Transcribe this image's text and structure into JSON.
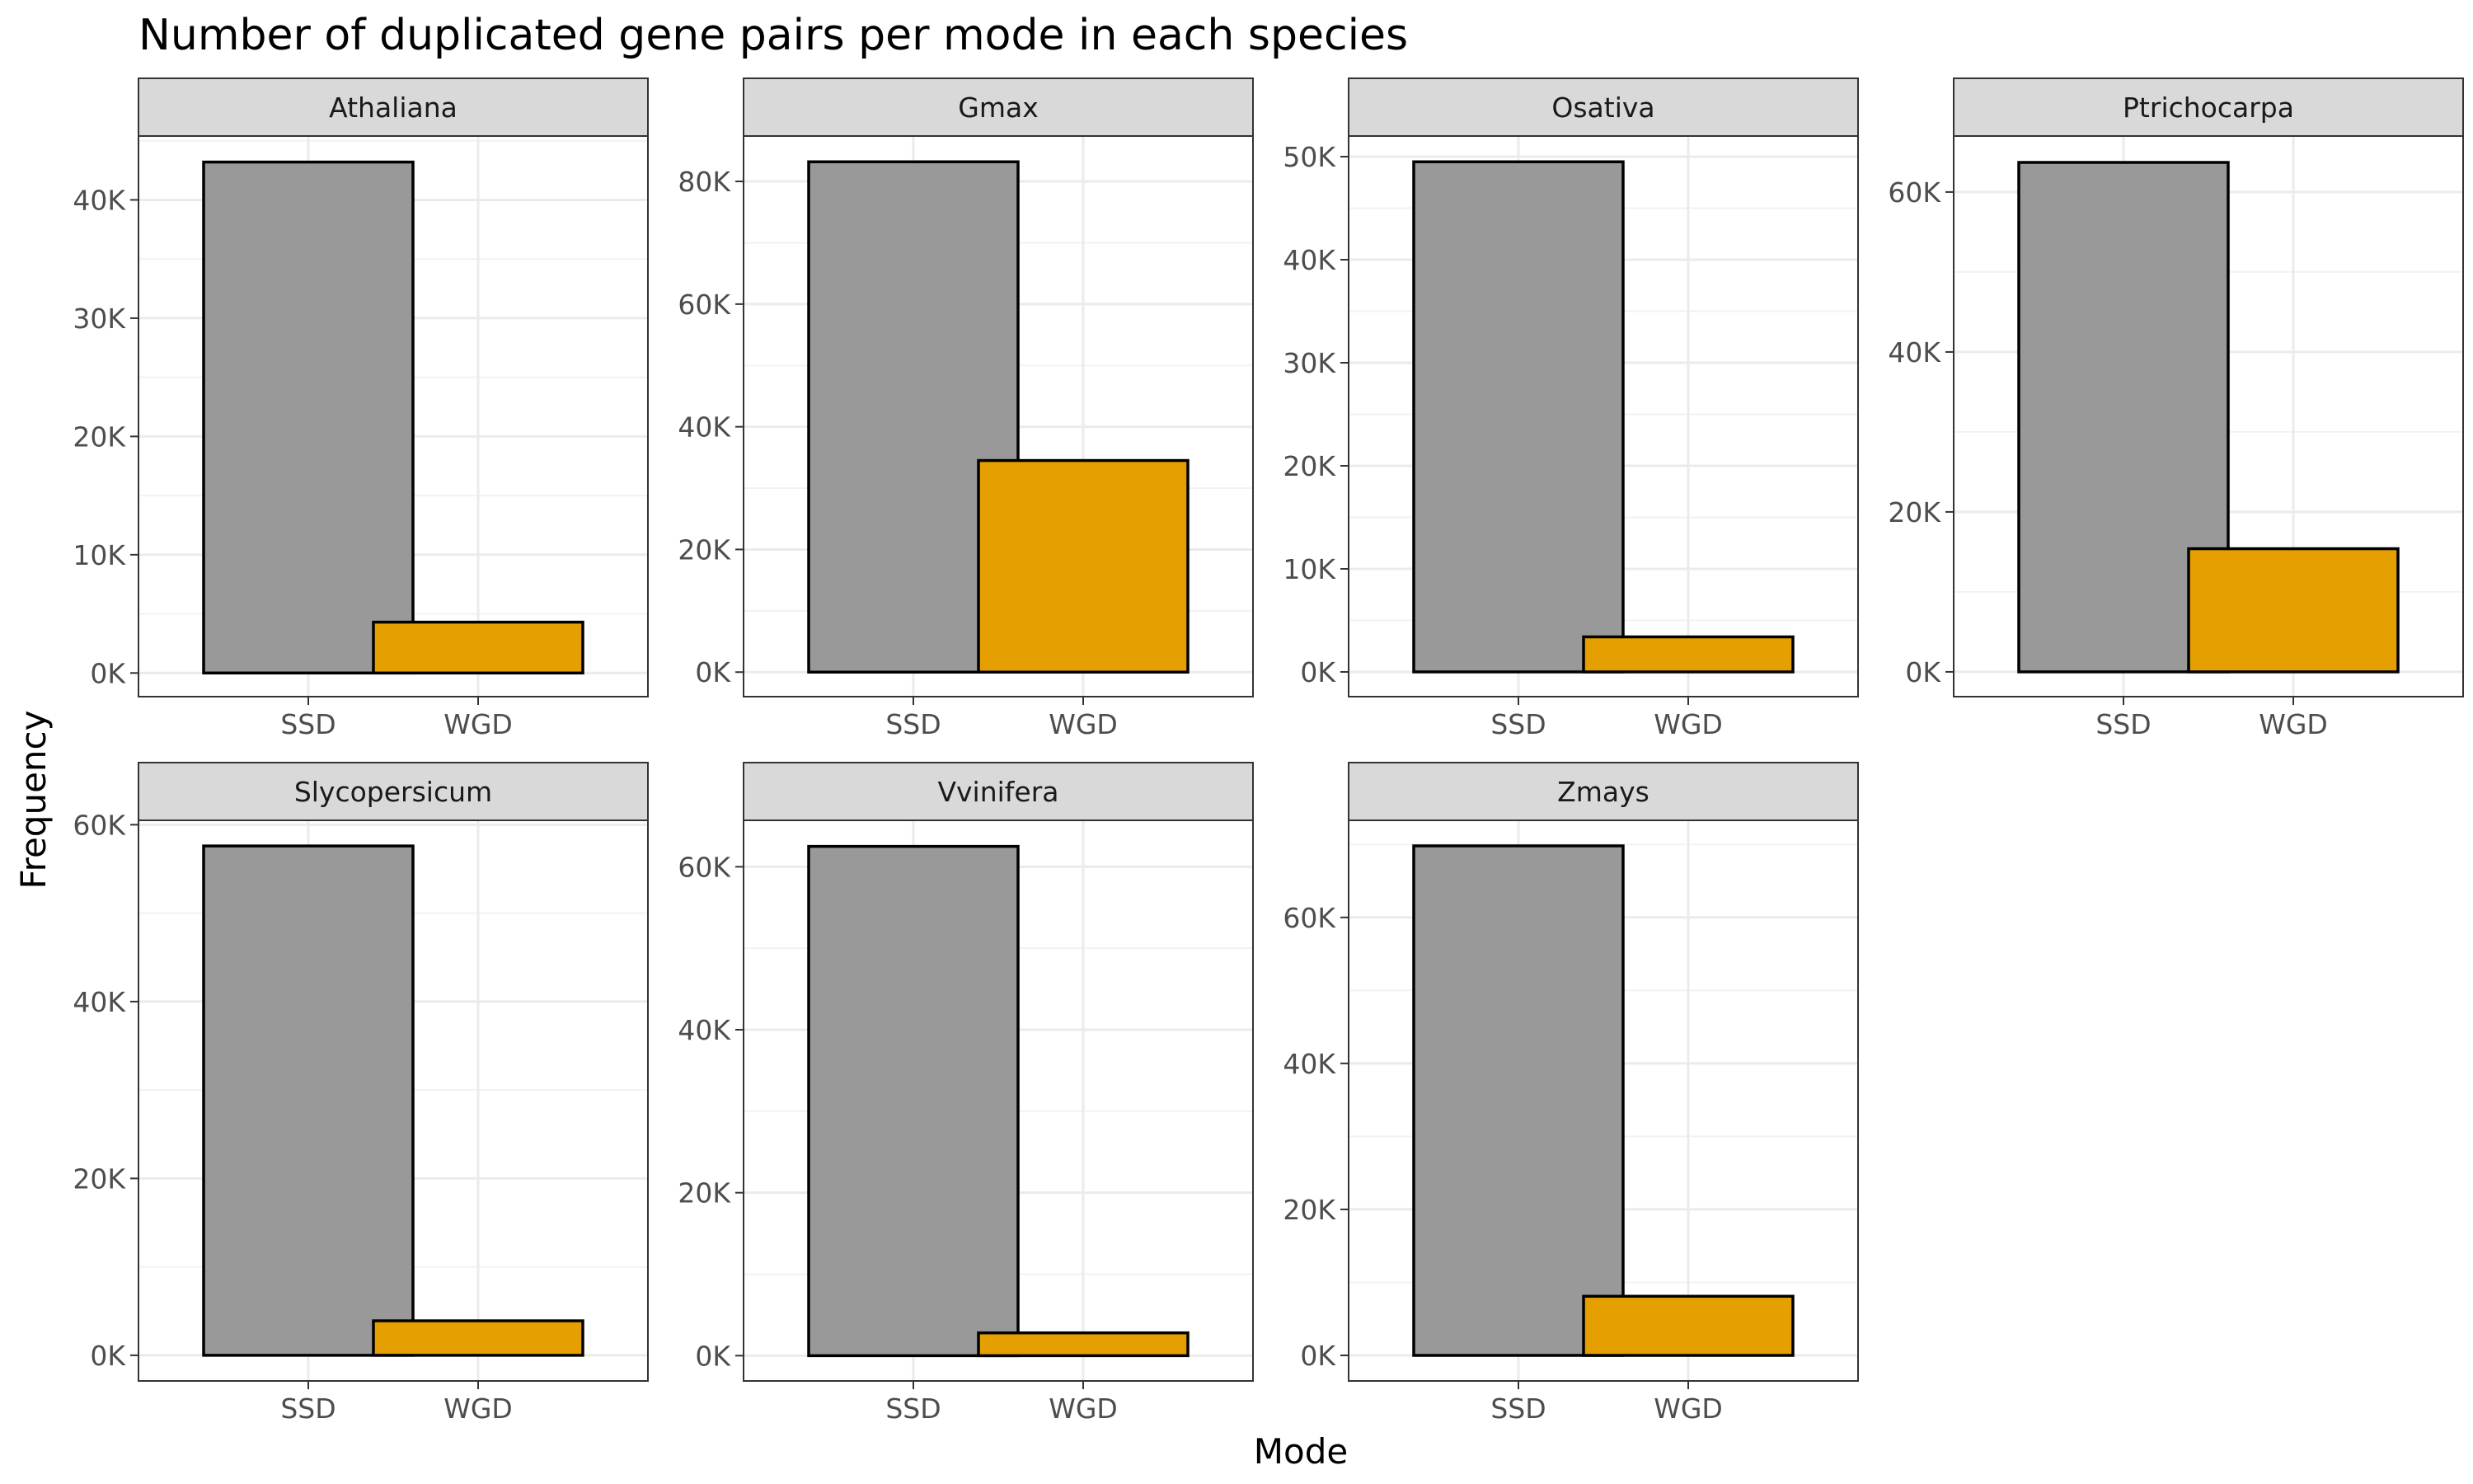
{
  "chart_data": {
    "type": "bar",
    "title": "Number of duplicated gene pairs per mode in each species",
    "xlabel": "Mode",
    "ylabel": "Frequency",
    "categories": [
      "SSD",
      "WGD"
    ],
    "colors": {
      "SSD": "#999999",
      "WGD": "#E69F00"
    },
    "grid": true,
    "facets": [
      {
        "name": "Athaliana",
        "values": [
          43200,
          4300
        ],
        "ylim": [
          -2000,
          45400
        ],
        "ticks": [
          0,
          10000,
          20000,
          30000,
          40000
        ],
        "tick_labels": [
          "0K",
          "10K",
          "20K",
          "30K",
          "40K"
        ]
      },
      {
        "name": "Gmax",
        "values": [
          83200,
          34500
        ],
        "ylim": [
          -4000,
          87400
        ],
        "ticks": [
          0,
          20000,
          40000,
          60000,
          80000
        ],
        "tick_labels": [
          "0K",
          "20K",
          "40K",
          "60K",
          "80K"
        ]
      },
      {
        "name": "Osativa",
        "values": [
          49500,
          3400
        ],
        "ylim": [
          -2400,
          52000
        ],
        "ticks": [
          0,
          10000,
          20000,
          30000,
          40000,
          50000
        ],
        "tick_labels": [
          "0K",
          "10K",
          "20K",
          "30K",
          "40K",
          "50K"
        ]
      },
      {
        "name": "Ptrichocarpa",
        "values": [
          63700,
          15400
        ],
        "ylim": [
          -3100,
          67000
        ],
        "ticks": [
          0,
          20000,
          40000,
          60000
        ],
        "tick_labels": [
          "0K",
          "20K",
          "40K",
          "60K"
        ]
      },
      {
        "name": "Slycopersicum",
        "values": [
          57600,
          3900
        ],
        "ylim": [
          -2900,
          60500
        ],
        "ticks": [
          0,
          20000,
          40000,
          60000
        ],
        "tick_labels": [
          "0K",
          "20K",
          "40K",
          "60K"
        ]
      },
      {
        "name": "Vvinifera",
        "values": [
          62500,
          2800
        ],
        "ylim": [
          -3100,
          65700
        ],
        "ticks": [
          0,
          20000,
          40000,
          60000
        ],
        "tick_labels": [
          "0K",
          "20K",
          "40K",
          "60K"
        ]
      },
      {
        "name": "Zmays",
        "values": [
          69800,
          8100
        ],
        "ylim": [
          -3500,
          73300
        ],
        "ticks": [
          0,
          20000,
          40000,
          60000
        ],
        "tick_labels": [
          "0K",
          "20K",
          "40K",
          "60K"
        ]
      }
    ]
  }
}
